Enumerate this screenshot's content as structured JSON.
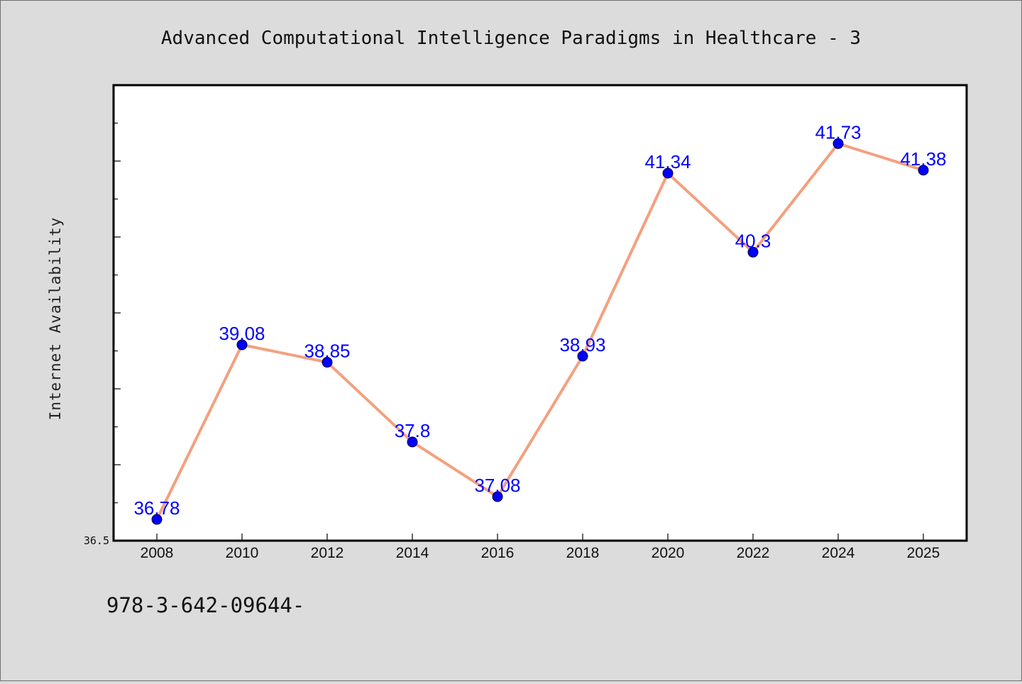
{
  "chart_data": {
    "type": "line",
    "title": "Advanced Computational Intelligence Paradigms in Healthcare - 3",
    "xlabel": "",
    "ylabel": "Internet Availability",
    "x": [
      "2008",
      "2010",
      "2012",
      "2014",
      "2016",
      "2018",
      "2020",
      "2022",
      "2024",
      "2025"
    ],
    "series": [
      {
        "values": [
          36.78,
          39.08,
          38.85,
          37.8,
          37.08,
          38.93,
          41.34,
          40.3,
          41.73,
          41.38
        ],
        "data_labels": [
          "36.78",
          "39.08",
          "38.85",
          "37.8",
          "37.08",
          "38.93",
          "41.34",
          "40.3",
          "41.73",
          "41.38"
        ],
        "line_color": "#f4a07e",
        "marker_color": "#0000ff"
      }
    ],
    "ylim": [
      36.5,
      42.5
    ],
    "y_tick_labels": [
      "36.5"
    ],
    "grid": false,
    "legend": "none",
    "background_color": "#dcdcdc",
    "plot_background_color": "#ffffff"
  },
  "footer": {
    "text": "978-3-642-09644-"
  }
}
